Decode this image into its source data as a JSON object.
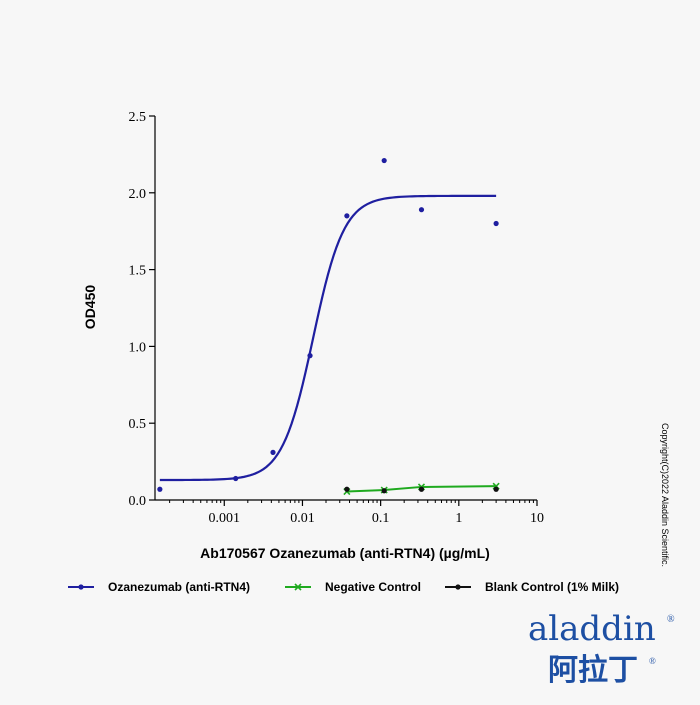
{
  "chart_data": {
    "type": "scatter",
    "title": "",
    "xlabel": "Ab170567 Ozanezumab (anti-RTN4) (µg/mL)",
    "ylabel": "OD450",
    "xscale": "log",
    "xlim": [
      0.00013,
      10
    ],
    "ylim": [
      0,
      2.5
    ],
    "x_ticks": [
      {
        "value": 0.001,
        "label": "0.001"
      },
      {
        "value": 0.01,
        "label": "0.01"
      },
      {
        "value": 0.1,
        "label": "0.1"
      },
      {
        "value": 1,
        "label": "1"
      },
      {
        "value": 10,
        "label": "10"
      }
    ],
    "y_ticks": [
      {
        "value": 0.0,
        "label": "0.0"
      },
      {
        "value": 0.5,
        "label": "0.5"
      },
      {
        "value": 1.0,
        "label": "1.0"
      },
      {
        "value": 1.5,
        "label": "1.5"
      },
      {
        "value": 2.0,
        "label": "2.0"
      },
      {
        "value": 2.5,
        "label": "2.5"
      }
    ],
    "grid": false,
    "legend_position": "bottom",
    "series": [
      {
        "name": "Ozanezumab (anti-RTN4)",
        "color": "#1f1fa0",
        "marker": "dot",
        "points": [
          {
            "x": 0.00015,
            "y": 0.07
          },
          {
            "x": 0.0014,
            "y": 0.14
          },
          {
            "x": 0.0042,
            "y": 0.31
          },
          {
            "x": 0.0125,
            "y": 0.94
          },
          {
            "x": 0.037,
            "y": 1.85
          },
          {
            "x": 0.111,
            "y": 2.21
          },
          {
            "x": 0.333,
            "y": 1.89
          },
          {
            "x": 3.0,
            "y": 1.8
          }
        ],
        "fit": {
          "type": "4PL",
          "bottom": 0.13,
          "top": 1.98,
          "ec50": 0.0137,
          "hill": 2.2,
          "x_from": 0.00015,
          "x_to": 3.0
        }
      },
      {
        "name": "Negative Control",
        "color": "#1faa1f",
        "marker": "x",
        "points": [
          {
            "x": 0.037,
            "y": 0.055
          },
          {
            "x": 0.111,
            "y": 0.065
          },
          {
            "x": 0.333,
            "y": 0.085
          },
          {
            "x": 3.0,
            "y": 0.09
          }
        ],
        "fit": {
          "type": "smooth",
          "x_from": 0.037,
          "x_to": 3.0
        }
      },
      {
        "name": "Blank Control (1% Milk)",
        "color": "#111111",
        "marker": "dot",
        "points": [
          {
            "x": 0.037,
            "y": 0.07
          },
          {
            "x": 0.111,
            "y": 0.06
          },
          {
            "x": 0.333,
            "y": 0.07
          },
          {
            "x": 3.0,
            "y": 0.07
          }
        ]
      }
    ]
  },
  "copyright": "Copyright(C)2022 Aladdin Scientific.",
  "logo": {
    "text": "aladdin",
    "registered": "®",
    "chinese": "阿拉丁",
    "colors": {
      "primary": "#1d4fa3",
      "accent": "#7fb838"
    }
  }
}
